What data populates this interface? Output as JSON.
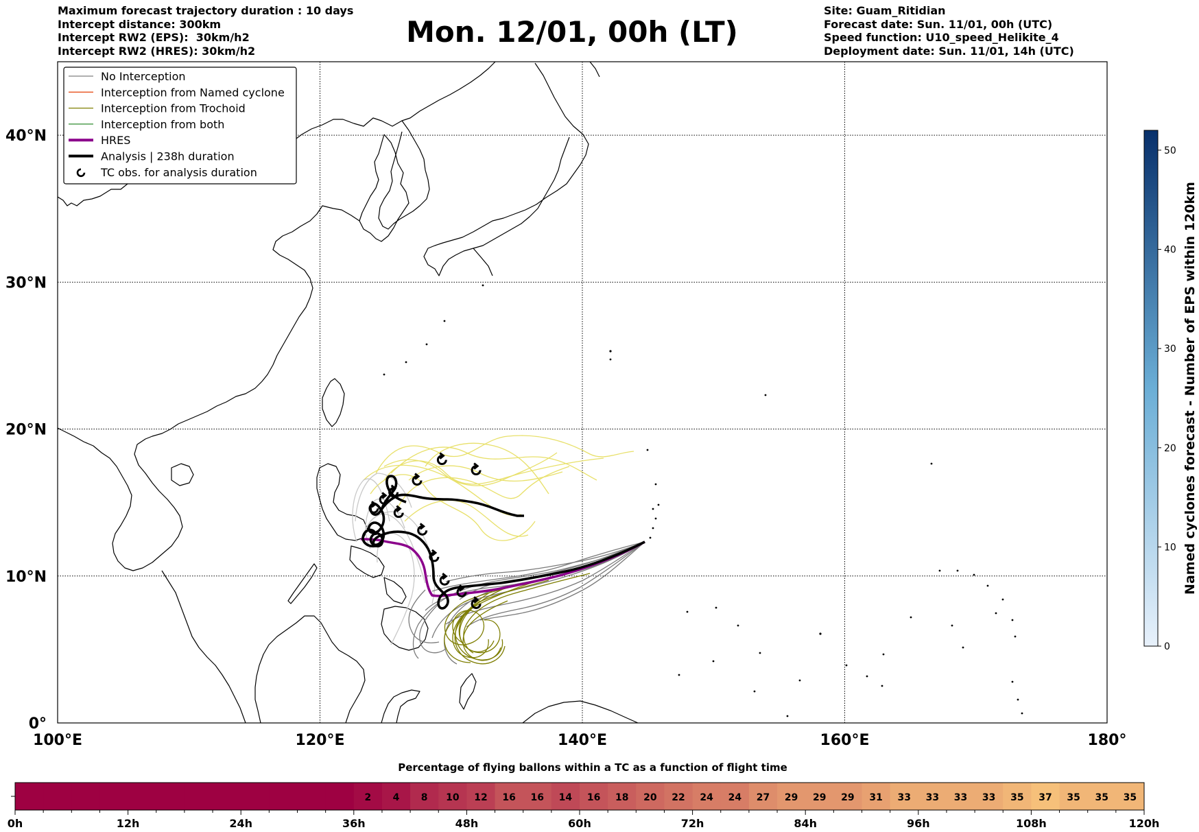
{
  "header": {
    "left": [
      "Maximum forecast trajectory duration : 10 days",
      "Intercept distance: 300km",
      "Intercept RW2 (EPS):  30km/h2",
      "Intercept RW2 (HRES): 30km/h2"
    ],
    "title": "Mon. 12/01, 00h (LT)",
    "right": [
      "Site: Guam_Ritidian",
      "Forecast date: Sun. 11/01, 00h (UTC)",
      "Speed function: U10_speed_Helikite_4",
      "Deployment date: Sun. 11/01, 14h (UTC)"
    ]
  },
  "map": {
    "lon_range": [
      100,
      180
    ],
    "lat_range": [
      0,
      45
    ],
    "lon_ticks": [
      "100°E",
      "120°E",
      "140°E",
      "160°E",
      "180°"
    ],
    "lat_ticks": [
      "0°",
      "10°N",
      "20°N",
      "30°N",
      "40°N"
    ],
    "gridlines": true
  },
  "legend": {
    "placement": "top-left",
    "items": [
      {
        "label": "No Interception",
        "color": "#808080",
        "style": "thin"
      },
      {
        "label": "Interception from Named cyclone",
        "color": "#e8501c",
        "style": "thin"
      },
      {
        "label": "Interception from Trochoid",
        "color": "#808000",
        "style": "thin"
      },
      {
        "label": "Interception from both",
        "color": "#2e8b2e",
        "style": "thin"
      },
      {
        "label": "HRES",
        "color": "#8b008b",
        "style": "thick"
      },
      {
        "label": "Analysis | 238h duration",
        "color": "#000000",
        "style": "thick"
      },
      {
        "label": "TC obs. for analysis duration",
        "color": "#000000",
        "style": "marker"
      }
    ]
  },
  "colorbar_right": {
    "label": "Named cyclones forecast - Number of EPS within 120km",
    "ticks": [
      "0",
      "10",
      "20",
      "30",
      "40",
      "50"
    ],
    "range": [
      0,
      52
    ],
    "color_low": "#e8f1fb",
    "color_high": "#08306b"
  },
  "bottom_bar": {
    "title": "Percentage of flying ballons within a TC as a function of flight time",
    "hour_ticks": [
      "0h",
      "12h",
      "24h",
      "36h",
      "48h",
      "60h",
      "72h",
      "84h",
      "96h",
      "108h",
      "120h"
    ],
    "hours_per_cell": 3,
    "values": [
      0,
      0,
      0,
      0,
      0,
      0,
      0,
      0,
      0,
      0,
      0,
      0,
      2,
      4,
      8,
      10,
      12,
      16,
      16,
      14,
      16,
      18,
      20,
      22,
      24,
      24,
      27,
      29,
      29,
      29,
      31,
      33,
      33,
      33,
      33,
      35,
      37,
      35,
      35,
      35
    ],
    "color_low": "#9e0142",
    "color_high": "#fdd07e"
  }
}
